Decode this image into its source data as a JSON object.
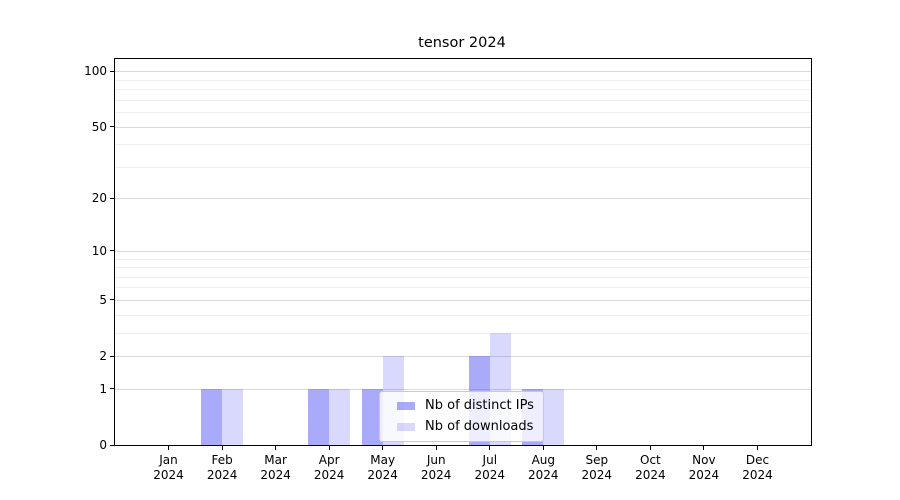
{
  "title": "tensor 2024",
  "legend": {
    "items": [
      {
        "label": "Nb of distinct IPs"
      },
      {
        "label": "Nb of downloads"
      }
    ]
  },
  "chart_data": {
    "type": "bar",
    "title": "tensor 2024",
    "categories": [
      "Jan",
      "Feb",
      "Mar",
      "Apr",
      "May",
      "Jun",
      "Jul",
      "Aug",
      "Sep",
      "Oct",
      "Nov",
      "Dec"
    ],
    "year": "2024",
    "series": [
      {
        "name": "Nb of distinct IPs",
        "values": [
          0,
          1,
          0,
          1,
          1,
          0,
          2,
          1,
          0,
          0,
          0,
          0
        ],
        "fill": "rgba(92,92,246,0.52)",
        "approx_hex": "#aaaaf7"
      },
      {
        "name": "Nb of downloads",
        "values": [
          0,
          1,
          0,
          1,
          2,
          0,
          3,
          1,
          0,
          0,
          0,
          0
        ],
        "fill": "rgba(92,92,246,0.23)",
        "approx_hex": "#d9d9f8"
      }
    ],
    "xlabel": "",
    "ylabel": "",
    "yscale": "log1p",
    "ylim": [
      0,
      116
    ],
    "y_tick_values": [
      0,
      1,
      2,
      5,
      10,
      20,
      50,
      100
    ],
    "y_minor_gridlines": [
      3,
      4,
      6,
      7,
      8,
      9,
      30,
      40,
      60,
      70,
      80,
      90
    ],
    "grid": true,
    "legend_position": "lower center",
    "colors": {
      "major_grid": "#d9d9d9",
      "minor_grid": "#efefef",
      "axis": "#000000",
      "text": "#000000",
      "background": "#ffffff",
      "bar_base": "#5c5cf6"
    }
  }
}
